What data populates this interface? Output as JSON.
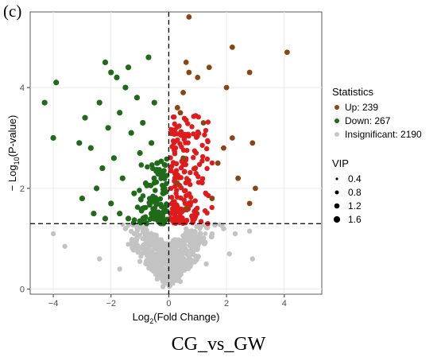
{
  "panel_label": "(c)",
  "caption": "CG_vs_GW",
  "chart_data": {
    "type": "scatter",
    "title": "",
    "xlabel": {
      "base": "Log",
      "sub": "2",
      "rest": "(Fold Change)"
    },
    "ylabel": {
      "prefix": "− Log",
      "sub": "10",
      "rest": "(P-value)"
    },
    "xlim": [
      -4.8,
      5.3
    ],
    "ylim": [
      -0.1,
      5.5
    ],
    "x_ticks": [
      -4,
      -2,
      0,
      2,
      4
    ],
    "x_tick_labels": [
      "−4",
      "−2",
      "0",
      "2",
      "4"
    ],
    "y_ticks": [
      0,
      2,
      4
    ],
    "y_tick_labels": [
      "0",
      "2",
      "4"
    ],
    "grid": true,
    "thresholds": {
      "log2fc": 0,
      "neg_log10_p": 1.3
    },
    "legend_placement": "right",
    "legend": {
      "statistics_title": "Statistics",
      "entries": [
        {
          "label": "Up: 239",
          "color": "#8b4513"
        },
        {
          "label": "Down: 267",
          "color": "#1f6b1a"
        },
        {
          "label": "Insignificant: 2190",
          "color": "#c8c8c8"
        }
      ],
      "vip_title": "VIP",
      "vip_sizes": [
        {
          "label": "0.4",
          "value": 0.4
        },
        {
          "label": "0.8",
          "value": 0.8
        },
        {
          "label": "1.2",
          "value": 1.2
        },
        {
          "label": "1.6",
          "value": 1.6
        }
      ]
    },
    "colors": {
      "up_outlier": "#8b4513",
      "up_dense": "#e01b1b",
      "down": "#1f6b1a",
      "insignificant": "#c3c3c3",
      "panel_bg": "#ffffff",
      "grid": "#ebebeb"
    },
    "series": [
      {
        "name": "Up: 239",
        "color": "#8b4513",
        "points": [
          {
            "x": 0.7,
            "y": 5.4
          },
          {
            "x": 2.2,
            "y": 4.8
          },
          {
            "x": 4.1,
            "y": 4.7
          },
          {
            "x": 0.6,
            "y": 4.5
          },
          {
            "x": 1.4,
            "y": 4.4
          },
          {
            "x": 0.7,
            "y": 4.3
          },
          {
            "x": 2.8,
            "y": 4.3
          },
          {
            "x": 1.0,
            "y": 4.2
          },
          {
            "x": 2.0,
            "y": 4.0
          },
          {
            "x": 0.5,
            "y": 3.9
          },
          {
            "x": 0.3,
            "y": 3.6
          },
          {
            "x": 0.4,
            "y": 3.5
          },
          {
            "x": 1.2,
            "y": 3.3
          },
          {
            "x": 2.2,
            "y": 3.0
          },
          {
            "x": 2.9,
            "y": 2.9
          },
          {
            "x": 1.9,
            "y": 2.8
          },
          {
            "x": 0.5,
            "y": 2.6
          },
          {
            "x": 1.7,
            "y": 2.5
          },
          {
            "x": 2.4,
            "y": 2.2
          },
          {
            "x": 0.3,
            "y": 2.1
          },
          {
            "x": 3.0,
            "y": 2.0
          },
          {
            "x": 1.5,
            "y": 1.8
          },
          {
            "x": 2.8,
            "y": 1.7
          },
          {
            "x": 0.6,
            "y": 1.6
          }
        ]
      },
      {
        "name": "Down: 267",
        "color": "#1f6b1a",
        "points": [
          {
            "x": -3.9,
            "y": 4.1
          },
          {
            "x": -4.3,
            "y": 3.7
          },
          {
            "x": -4.0,
            "y": 3.0
          },
          {
            "x": -0.7,
            "y": 4.6
          },
          {
            "x": -2.2,
            "y": 4.5
          },
          {
            "x": -1.4,
            "y": 4.4
          },
          {
            "x": -2.0,
            "y": 4.3
          },
          {
            "x": -1.8,
            "y": 4.2
          },
          {
            "x": -1.5,
            "y": 4.0
          },
          {
            "x": -2.4,
            "y": 3.7
          },
          {
            "x": -1.1,
            "y": 3.8
          },
          {
            "x": -0.5,
            "y": 3.7
          },
          {
            "x": -2.9,
            "y": 3.4
          },
          {
            "x": -1.7,
            "y": 3.5
          },
          {
            "x": -0.9,
            "y": 3.3
          },
          {
            "x": -2.1,
            "y": 3.2
          },
          {
            "x": -1.3,
            "y": 3.1
          },
          {
            "x": -3.1,
            "y": 2.9
          },
          {
            "x": -2.7,
            "y": 2.8
          },
          {
            "x": -0.6,
            "y": 2.9
          },
          {
            "x": -1.9,
            "y": 2.6
          },
          {
            "x": -1.0,
            "y": 2.7
          },
          {
            "x": -2.3,
            "y": 2.4
          },
          {
            "x": -0.4,
            "y": 2.5
          },
          {
            "x": -1.6,
            "y": 2.2
          },
          {
            "x": -2.5,
            "y": 2.0
          },
          {
            "x": -0.8,
            "y": 2.1
          },
          {
            "x": -3.0,
            "y": 1.8
          },
          {
            "x": -1.2,
            "y": 1.9
          },
          {
            "x": -2.0,
            "y": 1.7
          },
          {
            "x": -0.5,
            "y": 1.8
          },
          {
            "x": -1.7,
            "y": 1.5
          },
          {
            "x": -0.9,
            "y": 1.6
          },
          {
            "x": -2.6,
            "y": 1.5
          },
          {
            "x": -0.3,
            "y": 1.4
          },
          {
            "x": -1.4,
            "y": 1.4
          },
          {
            "x": -0.6,
            "y": 1.5
          },
          {
            "x": -2.2,
            "y": 1.4
          },
          {
            "x": -1.0,
            "y": 1.35
          },
          {
            "x": -0.2,
            "y": 1.9
          }
        ]
      },
      {
        "name": "Insignificant: 2190",
        "color": "#c3c3c3",
        "points": [
          {
            "x": -1.5,
            "y": 1.2
          },
          {
            "x": -1.2,
            "y": 1.1
          },
          {
            "x": -0.9,
            "y": 1.0
          },
          {
            "x": -0.7,
            "y": 0.9
          },
          {
            "x": -0.5,
            "y": 0.8
          },
          {
            "x": -0.3,
            "y": 0.7
          },
          {
            "x": -0.1,
            "y": 0.5
          },
          {
            "x": 0.1,
            "y": 0.4
          },
          {
            "x": 0.3,
            "y": 0.6
          },
          {
            "x": 0.5,
            "y": 0.8
          },
          {
            "x": 0.8,
            "y": 0.9
          },
          {
            "x": 1.1,
            "y": 1.0
          },
          {
            "x": 1.5,
            "y": 1.1
          },
          {
            "x": 1.9,
            "y": 1.2
          },
          {
            "x": 2.3,
            "y": 1.1
          },
          {
            "x": 2.8,
            "y": 1.15
          },
          {
            "x": 2.9,
            "y": 0.6
          },
          {
            "x": -2.4,
            "y": 0.6
          },
          {
            "x": -1.7,
            "y": 0.4
          },
          {
            "x": -3.6,
            "y": 0.85
          },
          {
            "x": -4.0,
            "y": 1.1
          },
          {
            "x": -0.4,
            "y": 0.2
          },
          {
            "x": 0.4,
            "y": 0.15
          },
          {
            "x": -0.2,
            "y": 0.05
          },
          {
            "x": 0.2,
            "y": 0.3
          },
          {
            "x": 1.3,
            "y": 0.5
          },
          {
            "x": -1.0,
            "y": 0.55
          },
          {
            "x": 0.6,
            "y": 1.2
          },
          {
            "x": -0.8,
            "y": 1.25
          },
          {
            "x": 2.1,
            "y": 0.7
          }
        ]
      }
    ]
  }
}
